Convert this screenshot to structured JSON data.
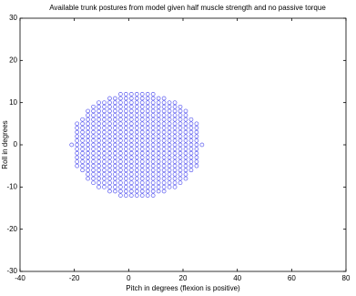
{
  "chart_data": {
    "type": "scatter",
    "title": "Available trunk postures from model given half muscle strength and no passive torque",
    "x_label": "Pitch in degrees (flexion is positive)",
    "y_label": "Roll in degrees",
    "xlim": [
      -40,
      80
    ],
    "xticks": [
      -40,
      -20,
      0,
      20,
      40,
      60,
      80
    ],
    "ylim": [
      -30,
      30
    ],
    "yticks": [
      -30,
      -20,
      -10,
      0,
      10,
      20,
      30
    ],
    "grid": false,
    "color": "#5a5af0",
    "x": [
      -3,
      -1,
      1,
      3,
      5,
      7,
      9,
      -7,
      -5,
      -3,
      -1,
      1,
      3,
      5,
      7,
      9,
      11,
      13,
      -11,
      -9,
      -7,
      -5,
      -3,
      -1,
      1,
      3,
      5,
      7,
      9,
      11,
      13,
      15,
      17,
      -13,
      -11,
      -9,
      -7,
      -5,
      -3,
      -1,
      1,
      3,
      5,
      7,
      9,
      11,
      13,
      15,
      17,
      19,
      -15,
      -13,
      -11,
      -9,
      -7,
      -5,
      -3,
      -1,
      1,
      3,
      5,
      7,
      9,
      11,
      13,
      15,
      17,
      19,
      21,
      -15,
      -13,
      -11,
      -9,
      -7,
      -5,
      -3,
      -1,
      1,
      3,
      5,
      7,
      9,
      11,
      13,
      15,
      17,
      19,
      21,
      -17,
      -15,
      -13,
      -11,
      -9,
      -7,
      -5,
      -3,
      -1,
      1,
      3,
      5,
      7,
      9,
      11,
      13,
      15,
      17,
      19,
      21,
      23,
      -19,
      -17,
      -15,
      -13,
      -11,
      -9,
      -7,
      -5,
      -3,
      -1,
      1,
      3,
      5,
      7,
      9,
      11,
      13,
      15,
      17,
      19,
      21,
      23,
      25,
      -19,
      -17,
      -15,
      -13,
      -11,
      -9,
      -7,
      -5,
      -3,
      -1,
      1,
      3,
      5,
      7,
      9,
      11,
      13,
      15,
      17,
      19,
      21,
      23,
      25,
      -19,
      -17,
      -15,
      -13,
      -11,
      -9,
      -7,
      -5,
      -3,
      -1,
      1,
      3,
      5,
      7,
      9,
      11,
      13,
      15,
      17,
      19,
      21,
      23,
      25,
      -19,
      -17,
      -15,
      -13,
      -11,
      -9,
      -7,
      -5,
      -3,
      -1,
      1,
      3,
      5,
      7,
      9,
      11,
      13,
      15,
      17,
      19,
      21,
      23,
      25,
      -19,
      -17,
      -15,
      -13,
      -11,
      -9,
      -7,
      -5,
      -3,
      -1,
      1,
      3,
      5,
      7,
      9,
      11,
      13,
      15,
      17,
      19,
      21,
      23,
      25,
      -21,
      -19,
      -17,
      -15,
      -13,
      -11,
      -9,
      -7,
      -5,
      -3,
      -1,
      1,
      3,
      5,
      7,
      9,
      11,
      13,
      15,
      17,
      19,
      21,
      23,
      25,
      27,
      -19,
      -17,
      -15,
      -13,
      -11,
      -9,
      -7,
      -5,
      -3,
      -1,
      1,
      3,
      5,
      7,
      9,
      11,
      13,
      15,
      17,
      19,
      21,
      23,
      25,
      -19,
      -17,
      -15,
      -13,
      -11,
      -9,
      -7,
      -5,
      -3,
      -1,
      1,
      3,
      5,
      7,
      9,
      11,
      13,
      15,
      17,
      19,
      21,
      23,
      25,
      -19,
      -17,
      -15,
      -13,
      -11,
      -9,
      -7,
      -5,
      -3,
      -1,
      1,
      3,
      5,
      7,
      9,
      11,
      13,
      15,
      17,
      19,
      21,
      23,
      25,
      -19,
      -17,
      -15,
      -13,
      -11,
      -9,
      -7,
      -5,
      -3,
      -1,
      1,
      3,
      5,
      7,
      9,
      11,
      13,
      15,
      17,
      19,
      21,
      23,
      25,
      -19,
      -17,
      -15,
      -13,
      -11,
      -9,
      -7,
      -5,
      -3,
      -1,
      1,
      3,
      5,
      7,
      9,
      11,
      13,
      15,
      17,
      19,
      21,
      23,
      25,
      -17,
      -15,
      -13,
      -11,
      -9,
      -7,
      -5,
      -3,
      -1,
      1,
      3,
      5,
      7,
      9,
      11,
      13,
      15,
      17,
      19,
      21,
      23,
      -15,
      -13,
      -11,
      -9,
      -7,
      -5,
      -3,
      -1,
      1,
      3,
      5,
      7,
      9,
      11,
      13,
      15,
      17,
      19,
      21,
      -15,
      -13,
      -11,
      -9,
      -7,
      -5,
      -3,
      -1,
      1,
      3,
      5,
      7,
      9,
      11,
      13,
      15,
      17,
      19,
      21,
      -13,
      -11,
      -9,
      -7,
      -5,
      -3,
      -1,
      1,
      3,
      5,
      7,
      9,
      11,
      13,
      15,
      17,
      19,
      -11,
      -9,
      -7,
      -5,
      -3,
      -1,
      1,
      3,
      5,
      7,
      9,
      11,
      13,
      15,
      17,
      -7,
      -5,
      -3,
      -1,
      1,
      3,
      5,
      7,
      9,
      11,
      13,
      -3,
      -1,
      1,
      3,
      5,
      7,
      9
    ],
    "y": [
      12,
      12,
      12,
      12,
      12,
      12,
      12,
      11,
      11,
      11,
      11,
      11,
      11,
      11,
      11,
      11,
      11,
      11,
      10,
      10,
      10,
      10,
      10,
      10,
      10,
      10,
      10,
      10,
      10,
      10,
      10,
      10,
      10,
      9,
      9,
      9,
      9,
      9,
      9,
      9,
      9,
      9,
      9,
      9,
      9,
      9,
      9,
      9,
      9,
      9,
      8,
      8,
      8,
      8,
      8,
      8,
      8,
      8,
      8,
      8,
      8,
      8,
      8,
      8,
      8,
      8,
      8,
      8,
      8,
      7,
      7,
      7,
      7,
      7,
      7,
      7,
      7,
      7,
      7,
      7,
      7,
      7,
      7,
      7,
      7,
      7,
      7,
      7,
      6,
      6,
      6,
      6,
      6,
      6,
      6,
      6,
      6,
      6,
      6,
      6,
      6,
      6,
      6,
      6,
      6,
      6,
      6,
      6,
      6,
      5,
      5,
      5,
      5,
      5,
      5,
      5,
      5,
      5,
      5,
      5,
      5,
      5,
      5,
      5,
      5,
      5,
      5,
      5,
      5,
      5,
      5,
      5,
      4,
      4,
      4,
      4,
      4,
      4,
      4,
      4,
      4,
      4,
      4,
      4,
      4,
      4,
      4,
      4,
      4,
      4,
      4,
      4,
      4,
      4,
      4,
      3,
      3,
      3,
      3,
      3,
      3,
      3,
      3,
      3,
      3,
      3,
      3,
      3,
      3,
      3,
      3,
      3,
      3,
      3,
      3,
      3,
      3,
      3,
      2,
      2,
      2,
      2,
      2,
      2,
      2,
      2,
      2,
      2,
      2,
      2,
      2,
      2,
      2,
      2,
      2,
      2,
      2,
      2,
      2,
      2,
      2,
      1,
      1,
      1,
      1,
      1,
      1,
      1,
      1,
      1,
      1,
      1,
      1,
      1,
      1,
      1,
      1,
      1,
      1,
      1,
      1,
      1,
      1,
      1,
      0,
      0,
      0,
      0,
      0,
      0,
      0,
      0,
      0,
      0,
      0,
      0,
      0,
      0,
      0,
      0,
      0,
      0,
      0,
      0,
      0,
      0,
      0,
      0,
      0,
      -1,
      -1,
      -1,
      -1,
      -1,
      -1,
      -1,
      -1,
      -1,
      -1,
      -1,
      -1,
      -1,
      -1,
      -1,
      -1,
      -1,
      -1,
      -1,
      -1,
      -1,
      -1,
      -1,
      -2,
      -2,
      -2,
      -2,
      -2,
      -2,
      -2,
      -2,
      -2,
      -2,
      -2,
      -2,
      -2,
      -2,
      -2,
      -2,
      -2,
      -2,
      -2,
      -2,
      -2,
      -2,
      -2,
      -3,
      -3,
      -3,
      -3,
      -3,
      -3,
      -3,
      -3,
      -3,
      -3,
      -3,
      -3,
      -3,
      -3,
      -3,
      -3,
      -3,
      -3,
      -3,
      -3,
      -3,
      -3,
      -3,
      -4,
      -4,
      -4,
      -4,
      -4,
      -4,
      -4,
      -4,
      -4,
      -4,
      -4,
      -4,
      -4,
      -4,
      -4,
      -4,
      -4,
      -4,
      -4,
      -4,
      -4,
      -4,
      -4,
      -5,
      -5,
      -5,
      -5,
      -5,
      -5,
      -5,
      -5,
      -5,
      -5,
      -5,
      -5,
      -5,
      -5,
      -5,
      -5,
      -5,
      -5,
      -5,
      -5,
      -5,
      -5,
      -5,
      -6,
      -6,
      -6,
      -6,
      -6,
      -6,
      -6,
      -6,
      -6,
      -6,
      -6,
      -6,
      -6,
      -6,
      -6,
      -6,
      -6,
      -6,
      -6,
      -6,
      -6,
      -7,
      -7,
      -7,
      -7,
      -7,
      -7,
      -7,
      -7,
      -7,
      -7,
      -7,
      -7,
      -7,
      -7,
      -7,
      -7,
      -7,
      -7,
      -7,
      -8,
      -8,
      -8,
      -8,
      -8,
      -8,
      -8,
      -8,
      -8,
      -8,
      -8,
      -8,
      -8,
      -8,
      -8,
      -8,
      -8,
      -8,
      -8,
      -9,
      -9,
      -9,
      -9,
      -9,
      -9,
      -9,
      -9,
      -9,
      -9,
      -9,
      -9,
      -9,
      -9,
      -9,
      -9,
      -9,
      -10,
      -10,
      -10,
      -10,
      -10,
      -10,
      -10,
      -10,
      -10,
      -10,
      -10,
      -10,
      -10,
      -10,
      -10,
      -11,
      -11,
      -11,
      -11,
      -11,
      -11,
      -11,
      -11,
      -11,
      -11,
      -11,
      -12,
      -12,
      -12,
      -12,
      -12,
      -12,
      -12
    ]
  }
}
